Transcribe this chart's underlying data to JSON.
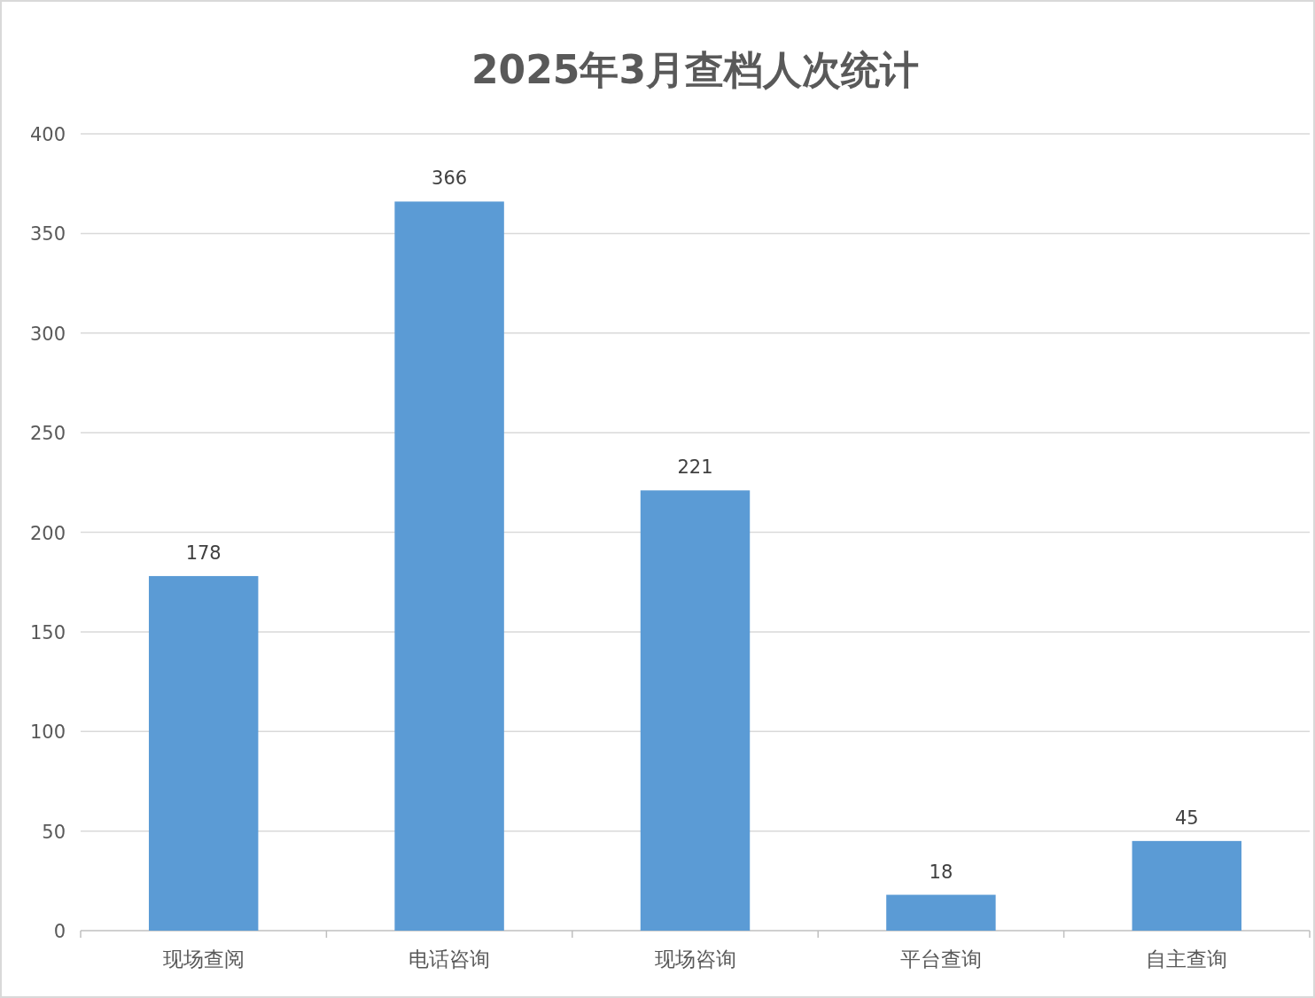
{
  "chart_data": {
    "type": "bar",
    "title": "2025年3月查档人次统计",
    "categories": [
      "现场查阅",
      "电话咨询",
      "现场咨询",
      "平台查询",
      "自主查询"
    ],
    "values": [
      178,
      366,
      221,
      18,
      45
    ],
    "color": "#5b9bd5",
    "ylim": [
      0,
      400
    ],
    "yticks": [
      0,
      50,
      100,
      150,
      200,
      250,
      300,
      350,
      400
    ],
    "grid": "y",
    "data_labels": true
  }
}
